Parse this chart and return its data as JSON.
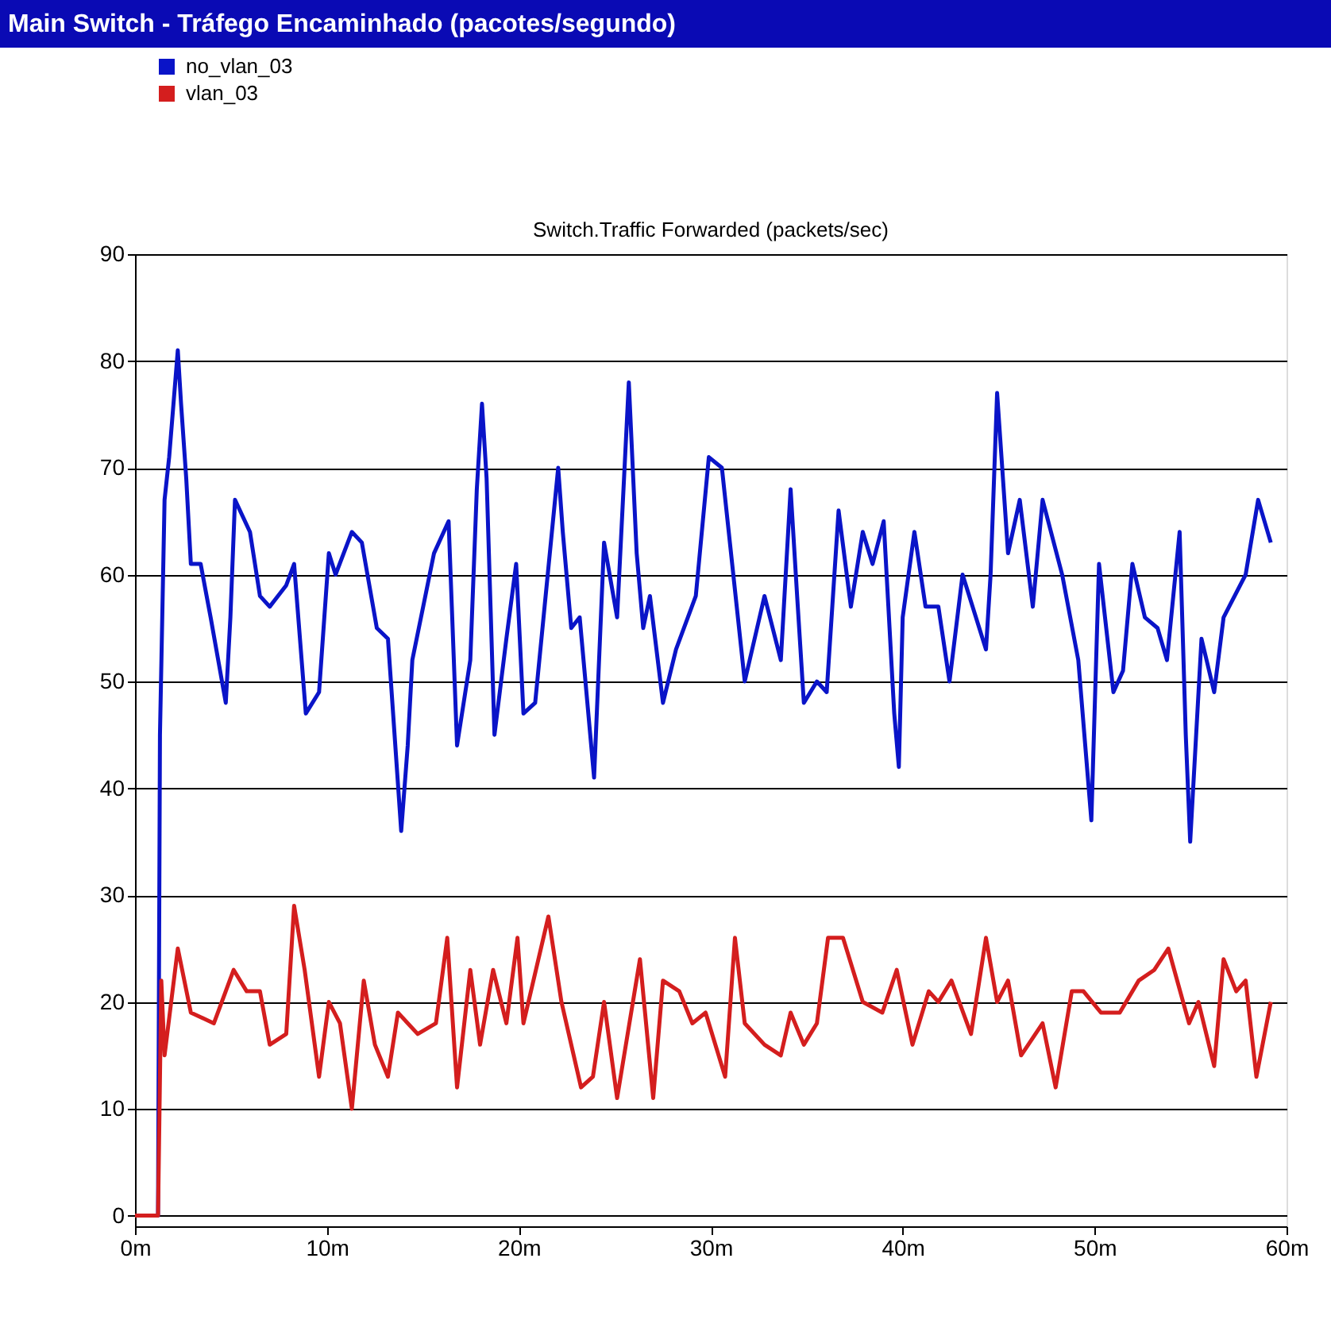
{
  "chart_data": {
    "type": "line",
    "title": "Main Switch - Tráfego Encaminhado (pacotes/segundo)",
    "subtitle": "Switch.Traffic Forwarded (packets/sec)",
    "xlim": [
      0,
      60
    ],
    "ylim": [
      -1,
      90
    ],
    "xticks": [
      {
        "value": 0,
        "label": "0m"
      },
      {
        "value": 10,
        "label": "10m"
      },
      {
        "value": 20,
        "label": "20m"
      },
      {
        "value": 30,
        "label": "30m"
      },
      {
        "value": 40,
        "label": "40m"
      },
      {
        "value": 50,
        "label": "50m"
      },
      {
        "value": 60,
        "label": "60m"
      }
    ],
    "yticks": [
      0,
      10,
      20,
      30,
      40,
      50,
      60,
      70,
      80,
      90
    ],
    "grid": "y",
    "legend": "top left",
    "line_style": "solid",
    "marker": "none",
    "series": [
      {
        "name": "no_vlan_03",
        "color": "#0a14c8",
        "x": [
          0,
          1.2,
          1.3,
          1.54,
          1.78,
          2.23,
          2.4,
          2.67,
          2.91,
          3.42,
          3.94,
          4.73,
          4.97,
          5.21,
          5.99,
          6.51,
          7.02,
          7.88,
          8.29,
          8.9,
          9.59,
          10.1,
          10.45,
          11.3,
          11.82,
          12.6,
          13.18,
          13.87,
          14.21,
          14.45,
          15.58,
          16.34,
          16.78,
          17.47,
          17.81,
          18.08,
          18.32,
          18.73,
          19.35,
          19.86,
          20.24,
          20.85,
          22.05,
          22.29,
          22.73,
          23.17,
          23.92,
          24.44,
          25.12,
          25.73,
          26.14,
          26.48,
          26.83,
          27.51,
          28.19,
          29.22,
          29.9,
          30.58,
          31.77,
          32.8,
          33.65,
          34.16,
          34.5,
          34.85,
          35.53,
          36.04,
          36.66,
          37.3,
          37.92,
          38.43,
          39.01,
          39.56,
          39.8,
          40.0,
          40.61,
          41.19,
          41.86,
          42.44,
          43.12,
          44.34,
          44.58,
          44.92,
          45.49,
          46.1,
          46.78,
          47.29,
          48.31,
          49.15,
          49.83,
          50.23,
          50.98,
          51.48,
          51.97,
          52.62,
          53.28,
          53.77,
          54.43,
          54.75,
          54.98,
          55.57,
          56.23,
          56.72,
          57.87,
          58.52,
          59.18
        ],
        "values": [
          0,
          0,
          45,
          67,
          71,
          81,
          76,
          69,
          61,
          61,
          56,
          48,
          56,
          67,
          64,
          58,
          57,
          59,
          61,
          47,
          49,
          62,
          60,
          64,
          63,
          55,
          54,
          36,
          44,
          52,
          62,
          65,
          44,
          52,
          68,
          76,
          69,
          45,
          54,
          61,
          47,
          48,
          70,
          64,
          55,
          56,
          41,
          63,
          56,
          78,
          62,
          55,
          58,
          48,
          53,
          58,
          71,
          70,
          50,
          58,
          52,
          68,
          58,
          48,
          50,
          49,
          66,
          57,
          64,
          61,
          65,
          47,
          42,
          56,
          64,
          57,
          57,
          50,
          60,
          53,
          60,
          77,
          62,
          67,
          57,
          67,
          60,
          52,
          37,
          61,
          49,
          51,
          61,
          56,
          55,
          52,
          64,
          45,
          35,
          54,
          49,
          56,
          60,
          67,
          63
        ]
      },
      {
        "name": "vlan_03",
        "color": "#d41e1e",
        "x": [
          0,
          1.2,
          1.37,
          1.54,
          2.23,
          2.91,
          4.11,
          5.14,
          5.82,
          6.51,
          7.02,
          7.88,
          8.29,
          8.84,
          9.59,
          10.1,
          10.68,
          11.3,
          11.92,
          12.5,
          13.18,
          13.7,
          14.73,
          15.68,
          16.27,
          16.78,
          17.47,
          17.98,
          18.66,
          19.35,
          19.93,
          20.24,
          21.54,
          22.22,
          23.24,
          23.86,
          24.44,
          25.12,
          26.31,
          27.0,
          27.51,
          28.36,
          29.04,
          29.73,
          30.75,
          31.26,
          31.77,
          32.8,
          33.65,
          34.16,
          34.85,
          35.53,
          36.11,
          36.89,
          37.92,
          38.94,
          39.69,
          40.51,
          41.36,
          41.86,
          42.54,
          43.56,
          44.34,
          44.92,
          45.49,
          46.17,
          47.29,
          47.97,
          48.81,
          49.42,
          50.33,
          51.31,
          52.3,
          53.11,
          53.84,
          54.92,
          55.41,
          56.23,
          56.72,
          57.38,
          57.87,
          58.43,
          59.18
        ],
        "values": [
          0,
          0,
          22,
          15,
          25,
          19,
          18,
          23,
          21,
          21,
          16,
          17,
          29,
          23,
          13,
          20,
          18,
          10,
          22,
          16,
          13,
          19,
          17,
          18,
          26,
          12,
          23,
          16,
          23,
          18,
          26,
          18,
          28,
          20,
          12,
          13,
          20,
          11,
          24,
          11,
          22,
          21,
          18,
          19,
          13,
          26,
          18,
          16,
          15,
          19,
          16,
          18,
          26,
          26,
          20,
          19,
          23,
          16,
          21,
          20,
          22,
          17,
          26,
          20,
          22,
          15,
          18,
          12,
          21,
          21,
          19,
          19,
          22,
          23,
          25,
          18,
          20,
          14,
          24,
          21,
          22,
          13,
          20
        ]
      }
    ]
  }
}
